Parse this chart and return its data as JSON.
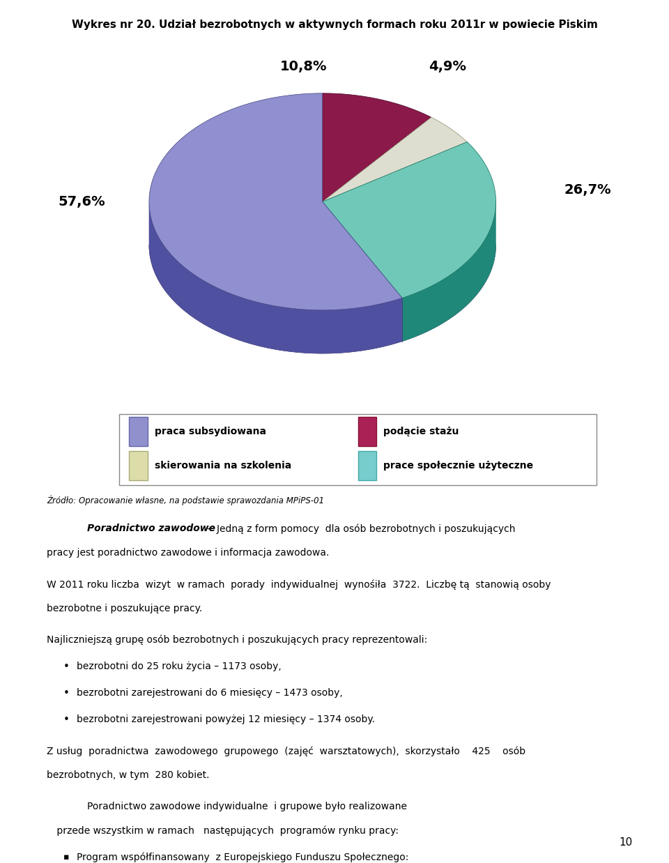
{
  "title": "Wykres nr 20. Udział bezrobotnych w aktywnych formach roku 2011r w powiecie Piskim",
  "pie_values": [
    57.6,
    10.8,
    4.9,
    26.7
  ],
  "pie_colors_top": [
    "#9090d0",
    "#8b1a4a",
    "#deded0",
    "#70c8b8"
  ],
  "pie_colors_side": [
    "#5050a0",
    "#5a0a2a",
    "#b0b090",
    "#208878"
  ],
  "pie_colors_edge": [
    "#404080",
    "#400020",
    "#909070",
    "#107060"
  ],
  "legend_labels": [
    "praca subsydiowana",
    "podącie stażu",
    "skierowania na szkolenia",
    "prace społecznie użyteczne"
  ],
  "legend_colors": [
    "#9090cc",
    "#aa2255",
    "#ddddaa",
    "#77cccc"
  ],
  "legend_edge_colors": [
    "#6666aa",
    "#881133",
    "#aaaa77",
    "#44aaaa"
  ],
  "source_text": "Źródło: Opracowanie własne, na podstawie sprawozdania MPiPS-01",
  "page_number": "10",
  "label_10_8": "10,8%",
  "label_4_9": "4,9%",
  "label_26_7": "26,7%",
  "label_57_6": "57,6%"
}
